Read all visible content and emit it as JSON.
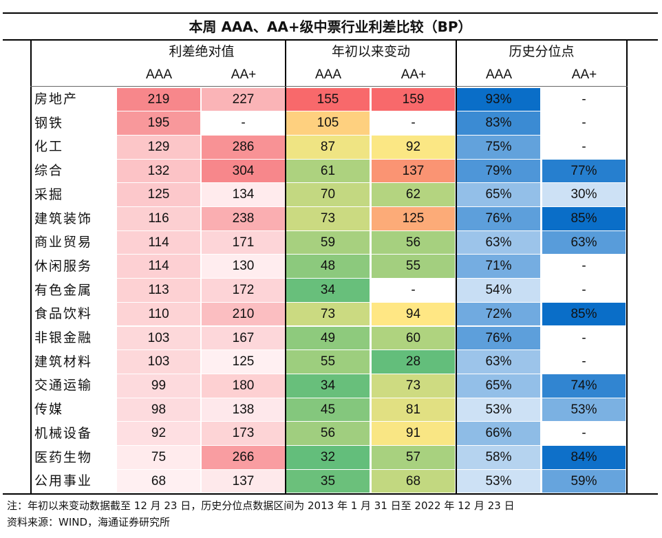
{
  "title": "本周 AAA、AA+级中票行业利差比较（BP）",
  "chart_data": {
    "type": "table",
    "title": "本周 AAA、AA+级中票行业利差比较（BP）",
    "groups": [
      "利差绝对值",
      "年初以来变动",
      "历史分位点"
    ],
    "subcolumns": [
      "AAA",
      "AA+",
      "AAA",
      "AA+",
      "AAA",
      "AA+"
    ],
    "rows": [
      {
        "industry": "房地产",
        "values": [
          "219",
          "227",
          "155",
          "159",
          "93%",
          "-"
        ]
      },
      {
        "industry": "钢铁",
        "values": [
          "195",
          "-",
          "105",
          "-",
          "83%",
          "-"
        ]
      },
      {
        "industry": "化工",
        "values": [
          "129",
          "286",
          "87",
          "92",
          "75%",
          "-"
        ]
      },
      {
        "industry": "综合",
        "values": [
          "132",
          "304",
          "61",
          "137",
          "79%",
          "77%"
        ]
      },
      {
        "industry": "采掘",
        "values": [
          "125",
          "134",
          "70",
          "62",
          "65%",
          "30%"
        ]
      },
      {
        "industry": "建筑装饰",
        "values": [
          "116",
          "238",
          "73",
          "125",
          "76%",
          "85%"
        ]
      },
      {
        "industry": "商业贸易",
        "values": [
          "114",
          "171",
          "59",
          "56",
          "63%",
          "63%"
        ]
      },
      {
        "industry": "休闲服务",
        "values": [
          "114",
          "130",
          "48",
          "55",
          "71%",
          "-"
        ]
      },
      {
        "industry": "有色金属",
        "values": [
          "113",
          "172",
          "34",
          "-",
          "54%",
          "-"
        ]
      },
      {
        "industry": "食品饮料",
        "values": [
          "110",
          "210",
          "73",
          "94",
          "72%",
          "85%"
        ]
      },
      {
        "industry": "非银金融",
        "values": [
          "103",
          "167",
          "49",
          "60",
          "76%",
          "-"
        ]
      },
      {
        "industry": "建筑材料",
        "values": [
          "103",
          "125",
          "55",
          "28",
          "63%",
          "-"
        ]
      },
      {
        "industry": "交通运输",
        "values": [
          "99",
          "180",
          "34",
          "73",
          "65%",
          "74%"
        ]
      },
      {
        "industry": "传媒",
        "values": [
          "98",
          "138",
          "45",
          "81",
          "53%",
          "53%"
        ]
      },
      {
        "industry": "机械设备",
        "values": [
          "92",
          "173",
          "56",
          "91",
          "66%",
          "-"
        ]
      },
      {
        "industry": "医药生物",
        "values": [
          "75",
          "266",
          "32",
          "57",
          "58%",
          "84%"
        ]
      },
      {
        "industry": "公用事业",
        "values": [
          "68",
          "137",
          "35",
          "68",
          "53%",
          "59%"
        ]
      }
    ]
  },
  "notes": {
    "note1": "注：年初以来变动数据截至 12 月 23 日，历史分位点数据区间为 2013 年 1 月 31 日至 2022 年 12 月 23 日",
    "source": "资料来源：WIND，海通证券研究所"
  }
}
